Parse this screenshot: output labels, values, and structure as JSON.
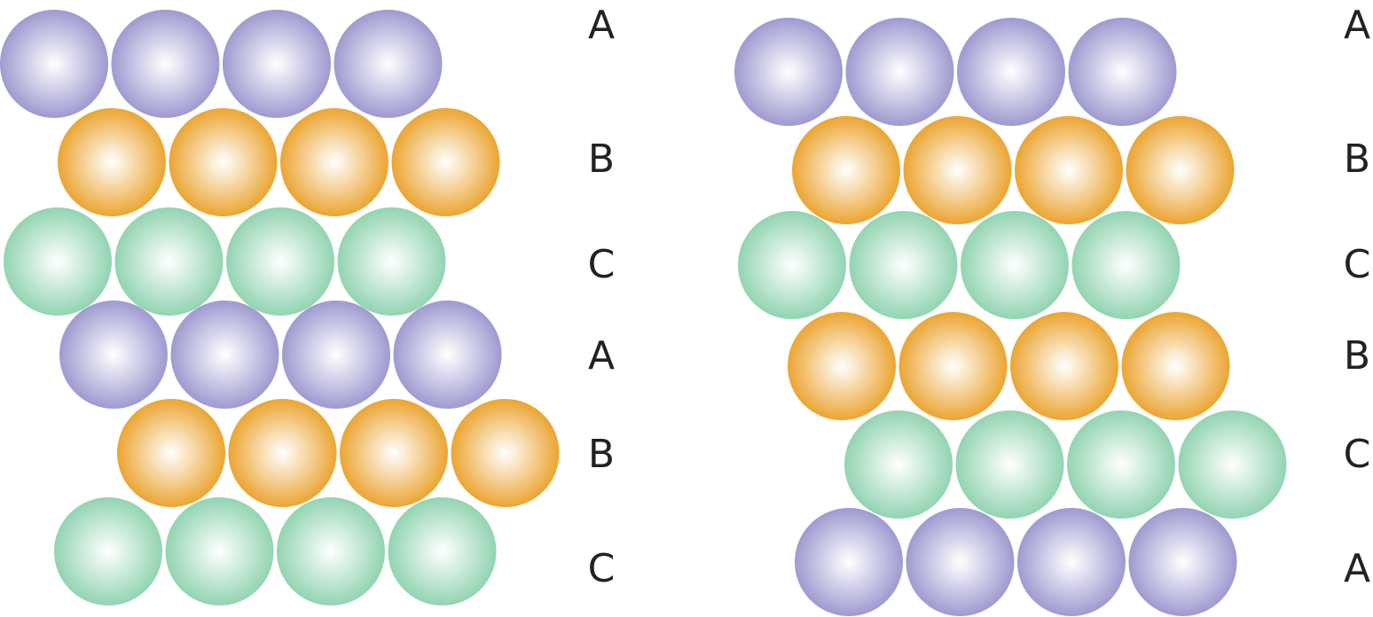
{
  "diagram": {
    "colors": {
      "A": {
        "base": "#9e9ad0",
        "highlight": "#ffffff"
      },
      "B": {
        "base": "#eba532",
        "highlight": "#ffffff"
      },
      "C": {
        "base": "#92d4b1",
        "highlight": "#ffffff"
      }
    },
    "stacks": [
      {
        "name": "left-stack",
        "rows": [
          {
            "layer": "A",
            "label": "A"
          },
          {
            "layer": "B",
            "label": "B"
          },
          {
            "layer": "C",
            "label": "C"
          },
          {
            "layer": "A",
            "label": "A"
          },
          {
            "layer": "B",
            "label": "B"
          },
          {
            "layer": "C",
            "label": "C"
          }
        ]
      },
      {
        "name": "right-stack",
        "rows": [
          {
            "layer": "A",
            "label": "A"
          },
          {
            "layer": "B",
            "label": "B"
          },
          {
            "layer": "C",
            "label": "C"
          },
          {
            "layer": "B",
            "label": "B"
          },
          {
            "layer": "C",
            "label": "C"
          },
          {
            "layer": "A",
            "label": "A"
          }
        ]
      }
    ]
  }
}
